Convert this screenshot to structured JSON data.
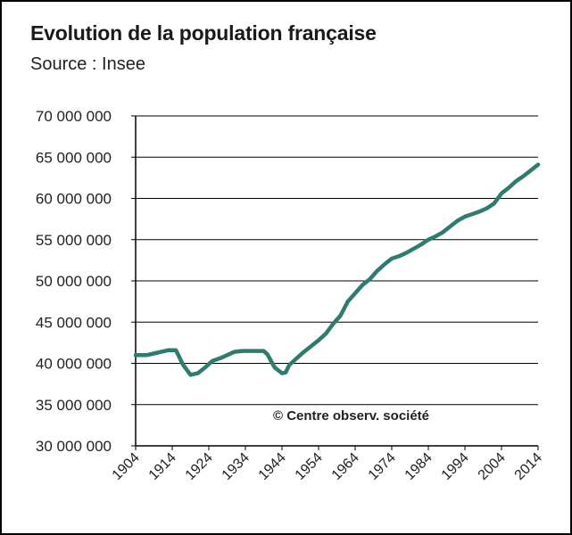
{
  "chart_data": {
    "type": "line",
    "title": "Evolution de la population française",
    "subtitle": "Source : Insee",
    "annotation": "© Centre observ. société",
    "xlabel": "",
    "ylabel": "",
    "xlim": [
      1904,
      2014
    ],
    "ylim": [
      30000000,
      70000000
    ],
    "y_ticks": [
      30000000,
      35000000,
      40000000,
      45000000,
      50000000,
      55000000,
      60000000,
      65000000,
      70000000
    ],
    "y_tick_labels": [
      "30 000 000",
      "35 000 000",
      "40 000 000",
      "45 000 000",
      "50 000 000",
      "55 000 000",
      "60 000 000",
      "65 000 000",
      "70 000 000"
    ],
    "x_ticks": [
      1904,
      1914,
      1924,
      1934,
      1944,
      1954,
      1964,
      1974,
      1984,
      1994,
      2004,
      2014
    ],
    "x_tick_labels": [
      "1904",
      "1914",
      "1924",
      "1934",
      "1944",
      "1954",
      "1964",
      "1974",
      "1984",
      "1994",
      "2004",
      "2014"
    ],
    "grid": "horizontal",
    "line_color": "#2e7b70",
    "series": [
      {
        "x": [
          1904,
          1907,
          1910,
          1913,
          1915,
          1917,
          1919,
          1921,
          1923,
          1925,
          1927,
          1929,
          1931,
          1933,
          1935,
          1937,
          1939,
          1940,
          1942,
          1944,
          1945,
          1946,
          1948,
          1950,
          1952,
          1954,
          1956,
          1958,
          1960,
          1962,
          1964,
          1966,
          1968,
          1970,
          1972,
          1974,
          1976,
          1978,
          1980,
          1982,
          1984,
          1986,
          1988,
          1990,
          1992,
          1994,
          1996,
          1998,
          2000,
          2002,
          2004,
          2006,
          2008,
          2010,
          2012,
          2014
        ],
        "values": [
          41000000,
          41000000,
          41300000,
          41600000,
          41600000,
          39800000,
          38600000,
          38800000,
          39500000,
          40300000,
          40600000,
          41000000,
          41400000,
          41500000,
          41500000,
          41500000,
          41500000,
          41100000,
          39500000,
          38800000,
          38900000,
          39800000,
          40600000,
          41400000,
          42100000,
          42800000,
          43600000,
          44800000,
          45800000,
          47500000,
          48500000,
          49500000,
          50200000,
          51200000,
          52000000,
          52700000,
          53000000,
          53400000,
          53900000,
          54400000,
          55000000,
          55400000,
          55900000,
          56600000,
          57300000,
          57800000,
          58100000,
          58400000,
          58800000,
          59400000,
          60600000,
          61300000,
          62100000,
          62700000,
          63400000,
          64100000
        ]
      }
    ]
  }
}
